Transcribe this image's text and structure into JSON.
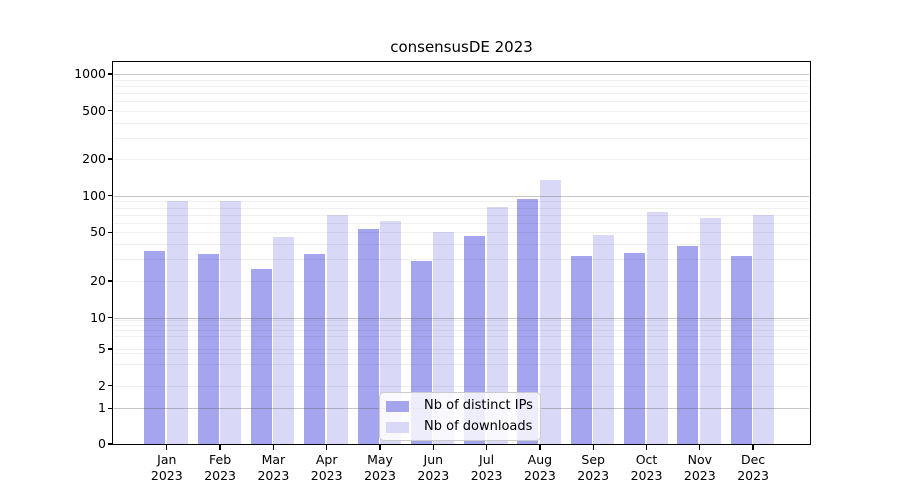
{
  "chart_data": {
    "type": "bar",
    "title": "consensusDE 2023",
    "categories": [
      "Jan",
      "Feb",
      "Mar",
      "Apr",
      "May",
      "Jun",
      "Jul",
      "Aug",
      "Sep",
      "Oct",
      "Nov",
      "Dec"
    ],
    "x_tick_second_line": "2023",
    "series": [
      {
        "name": "Nb of distinct IPs",
        "color": "#a5a5ef",
        "values": [
          35,
          33,
          25,
          33,
          53,
          29,
          47,
          94,
          32,
          34,
          39,
          32
        ]
      },
      {
        "name": "Nb of downloads",
        "color": "#d9d9f7",
        "values": [
          90,
          90,
          46,
          70,
          62,
          50,
          81,
          135,
          48,
          74,
          66,
          70
        ]
      }
    ],
    "ylabel": "",
    "xlabel": "",
    "yscale": "log",
    "yticks": [
      0,
      1,
      2,
      5,
      10,
      20,
      50,
      100,
      200,
      500,
      1000
    ],
    "ylim": [
      0,
      1400
    ],
    "grid": "on",
    "legend_position": "bottom-center"
  }
}
